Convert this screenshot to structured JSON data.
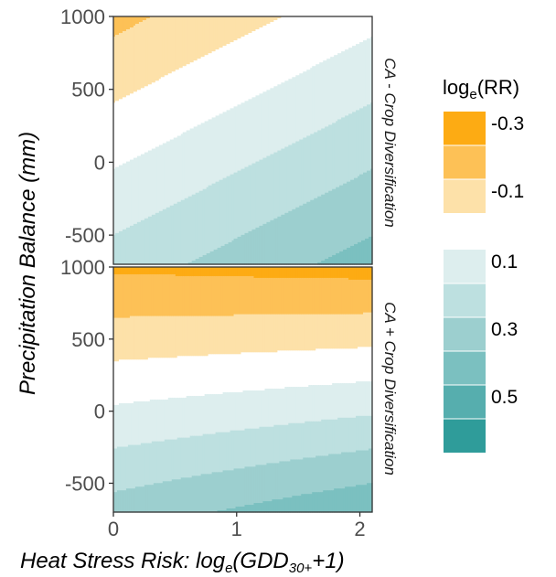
{
  "chart_data": {
    "type": "heatmap",
    "subtype": "filled-contour",
    "xlabel": "Heat Stress Risk: log",
    "xlabel_sub": "e",
    "xlabel_paren_open": "(GDD",
    "xlabel_paren_sub": "30+",
    "xlabel_tail": "+1)",
    "ylabel": "Precipitation Balance (mm)",
    "xlim": [
      0,
      2.1
    ],
    "ylim": [
      -700,
      1000
    ],
    "x_ticks": [
      0,
      1,
      2
    ],
    "y_ticks": [
      -500,
      0,
      500,
      1000
    ],
    "grid": false,
    "legend_position": "right",
    "legend": {
      "title_main": "log",
      "title_sub": "e",
      "title_tail": "(RR)",
      "levels": [
        {
          "range": [
            -0.4,
            -0.3
          ],
          "color": "#fdab13"
        },
        {
          "range": [
            -0.3,
            -0.2
          ],
          "color": "#fdc156"
        },
        {
          "range": [
            -0.2,
            -0.1
          ],
          "color": "#fde1a9"
        },
        {
          "range": [
            -0.1,
            0.0
          ],
          "color": "#ffffff"
        },
        {
          "range": [
            0.0,
            0.1
          ],
          "color": "#ddeeee"
        },
        {
          "range": [
            0.1,
            0.2
          ],
          "color": "#bde0e0"
        },
        {
          "range": [
            0.2,
            0.3
          ],
          "color": "#9ccfcf"
        },
        {
          "range": [
            0.3,
            0.4
          ],
          "color": "#7bc0c0"
        },
        {
          "range": [
            0.4,
            0.5
          ],
          "color": "#56aeae"
        },
        {
          "range": [
            0.5,
            0.6
          ],
          "color": "#2f9c9a"
        }
      ],
      "labels_top": [
        "-0.3",
        "-0.1"
      ],
      "labels_bottom": [
        "0.1",
        "0.3",
        "0.5"
      ]
    },
    "panels": [
      {
        "strip": "CA - Crop Diversification",
        "model": {
          "intercept": -0.01,
          "x_coef": 0.095,
          "y_coef": -0.00022
        }
      },
      {
        "strip": "CA + Crop Diversification",
        "model": {
          "intercept": 0.015,
          "x_coef": 0.035,
          "y_coef": -0.00033,
          "xy_coef": -4.5e-05
        }
      }
    ]
  }
}
